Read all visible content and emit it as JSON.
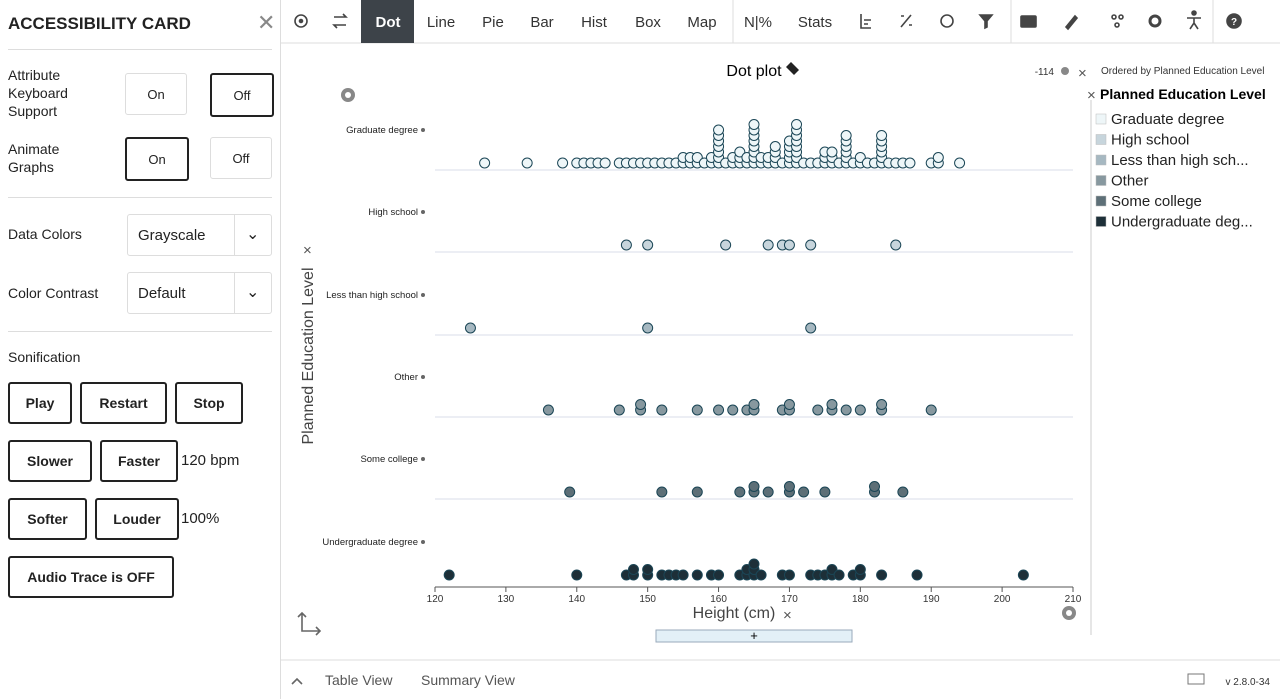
{
  "card": {
    "title": "ACCESSIBILITY CARD",
    "toggles": [
      {
        "label": "Attribute Keyboard Support",
        "options": [
          "On",
          "Off"
        ],
        "selected": 1
      },
      {
        "label": "Animate Graphs",
        "options": [
          "On",
          "Off"
        ],
        "selected": 0
      }
    ],
    "selects": [
      {
        "label": "Data Colors",
        "value": "Grayscale"
      },
      {
        "label": "Color Contrast",
        "value": "Default"
      }
    ],
    "sonification": {
      "title": "Sonification",
      "buttons": [
        "Play",
        "Restart",
        "Stop"
      ],
      "tempo": [
        "Slower",
        "Faster"
      ],
      "bpm": "120 bpm",
      "volume": [
        "Softer",
        "Louder"
      ],
      "volume_level": "100%",
      "trace": "Audio Trace is OFF"
    }
  },
  "toolbar": {
    "items": [
      "Dot",
      "Line",
      "Pie",
      "Bar",
      "Hist",
      "Box",
      "Map",
      "N|%",
      "Stats"
    ],
    "active": 0
  },
  "chart": {
    "type": "dot",
    "title": "Dot plot",
    "count": "-114",
    "sort_note": "Ordered by Planned Education Level",
    "legend_title": "Planned Education Level",
    "y_label": "Planned Education Level",
    "x_label": "Height (cm)",
    "xlim": [
      120,
      210
    ],
    "xticks": [
      120,
      130,
      140,
      150,
      160,
      170,
      180,
      190,
      200,
      210
    ],
    "groups": [
      {
        "name": "Graduate degree",
        "legend": "Graduate degree",
        "color": "#eef6f8",
        "values": [
          127,
          133,
          138,
          140,
          141,
          142,
          143,
          144,
          146,
          147,
          148,
          149,
          150,
          151,
          152,
          153,
          154,
          155,
          155,
          156,
          156,
          157,
          157,
          158,
          159,
          159,
          160,
          160,
          160,
          160,
          160,
          160,
          160,
          161,
          162,
          162,
          163,
          163,
          163,
          164,
          164,
          165,
          165,
          165,
          165,
          165,
          165,
          165,
          165,
          166,
          166,
          167,
          167,
          168,
          168,
          168,
          168,
          169,
          170,
          170,
          170,
          170,
          170,
          171,
          171,
          171,
          171,
          171,
          171,
          171,
          171,
          172,
          173,
          174,
          175,
          175,
          175,
          176,
          176,
          176,
          177,
          178,
          178,
          178,
          178,
          178,
          178,
          179,
          180,
          180,
          181,
          182,
          183,
          183,
          183,
          183,
          183,
          183,
          184,
          185,
          186,
          187,
          190,
          191,
          191,
          194
        ]
      },
      {
        "name": "High school",
        "legend": "High school",
        "color": "#c7d5dc",
        "values": [
          147,
          150,
          161,
          167,
          169,
          170,
          173,
          185
        ]
      },
      {
        "name": "Less than high school",
        "legend": "Less than high sch...",
        "color": "#a6b8c1",
        "values": [
          125,
          150,
          173
        ]
      },
      {
        "name": "Other",
        "legend": "Other",
        "color": "#87989f",
        "values": [
          136,
          146,
          149,
          149,
          152,
          157,
          160,
          162,
          164,
          165,
          165,
          169,
          170,
          170,
          174,
          176,
          176,
          178,
          180,
          183,
          183,
          190
        ]
      },
      {
        "name": "Some college",
        "legend": "Some college",
        "color": "#5d6f77",
        "values": [
          139,
          152,
          157,
          163,
          165,
          165,
          167,
          170,
          170,
          172,
          175,
          182,
          182,
          186
        ]
      },
      {
        "name": "Undergraduate degree",
        "legend": "Undergraduate deg...",
        "color": "#1d2f38",
        "values": [
          122,
          140,
          147,
          148,
          148,
          150,
          150,
          152,
          153,
          154,
          155,
          157,
          159,
          160,
          163,
          164,
          164,
          165,
          165,
          165,
          166,
          169,
          170,
          173,
          174,
          175,
          176,
          176,
          177,
          179,
          180,
          180,
          183,
          188,
          203
        ]
      }
    ]
  },
  "footer": {
    "tabs": [
      "Table View",
      "Summary View"
    ],
    "version": "v 2.8.0-34"
  }
}
